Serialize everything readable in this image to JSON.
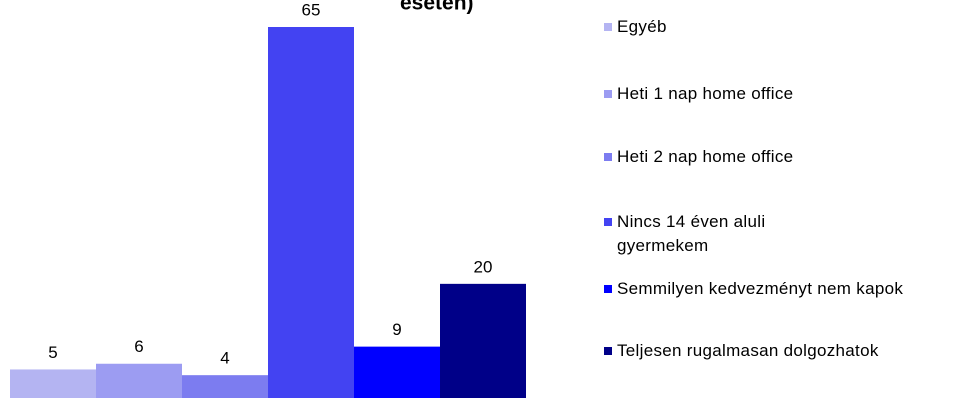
{
  "chart_data": {
    "type": "bar",
    "title": "esetén)",
    "categories": [
      "Egyéb",
      "Heti 1 nap home office",
      "Heti 2 nap home office",
      "Nincs 14 éven aluli gyermekem",
      "Semmilyen kedvezményt nem kapok",
      "Teljesen rugalmasan dolgozhatok"
    ],
    "values": [
      5,
      6,
      4,
      65,
      9,
      20
    ],
    "colors": [
      "#b4b4f2",
      "#9c9cf2",
      "#7c7cf0",
      "#4343f2",
      "#0000ff",
      "#000088"
    ],
    "legend": "right"
  }
}
